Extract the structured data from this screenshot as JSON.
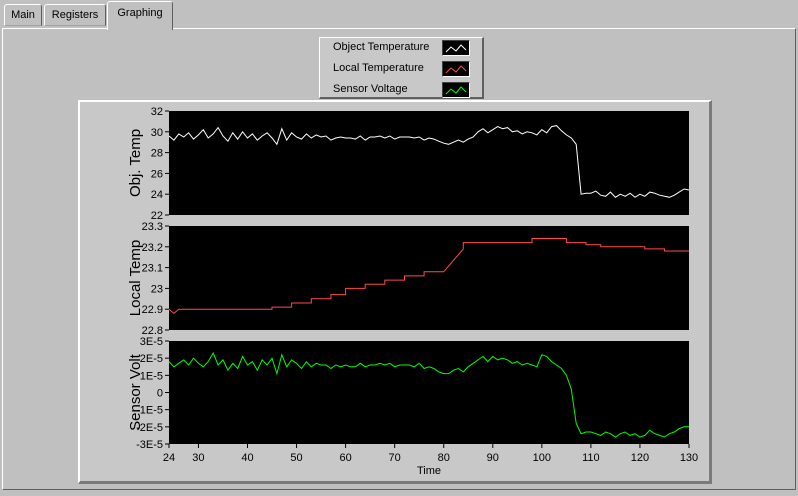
{
  "tabs": [
    {
      "label": "Main"
    },
    {
      "label": "Registers"
    },
    {
      "label": "Graphing",
      "active": true
    }
  ],
  "legend": [
    {
      "label": "Object Temperature",
      "color": "#ffffff"
    },
    {
      "label": "Local Temperature",
      "color": "#ff4a4a"
    },
    {
      "label": "Sensor Voltage",
      "color": "#00ff00"
    }
  ],
  "colors": {
    "background": "#c0c0c0",
    "plot_background": "#000000"
  },
  "chart_data": [
    {
      "type": "line",
      "ylabel": "Obj. Temp",
      "ylim": [
        22,
        32
      ],
      "yticks": [
        "32",
        "30",
        "28",
        "26",
        "24",
        "22"
      ],
      "ytick_values": [
        32,
        30,
        28,
        26,
        24,
        22
      ],
      "xlim": [
        24,
        130
      ],
      "series": [
        {
          "name": "Object Temperature",
          "color": "#ffffff",
          "x": [
            24,
            25,
            26,
            27,
            28,
            29,
            30,
            31,
            32,
            33,
            34,
            35,
            36,
            37,
            38,
            39,
            40,
            41,
            42,
            43,
            44,
            45,
            46,
            47,
            48,
            49,
            50,
            51,
            52,
            53,
            54,
            55,
            56,
            57,
            58,
            59,
            60,
            61,
            62,
            63,
            64,
            65,
            66,
            67,
            68,
            69,
            70,
            71,
            72,
            73,
            74,
            75,
            76,
            77,
            78,
            79,
            80,
            81,
            82,
            83,
            84,
            85,
            86,
            87,
            88,
            89,
            90,
            91,
            92,
            93,
            94,
            95,
            96,
            97,
            98,
            99,
            100,
            101,
            102,
            103,
            104,
            105,
            106,
            107,
            108,
            109,
            110,
            111,
            112,
            113,
            114,
            115,
            116,
            117,
            118,
            119,
            120,
            121,
            122,
            123,
            124,
            125,
            126,
            127,
            128,
            129,
            130
          ],
          "y": [
            29.6,
            29.2,
            29.8,
            29.5,
            29.9,
            29.3,
            29.7,
            30.2,
            29.4,
            29.8,
            30.4,
            29.6,
            29.1,
            29.9,
            29.3,
            30.0,
            29.4,
            29.8,
            29.2,
            29.6,
            29.9,
            29.4,
            28.8,
            30.3,
            29.2,
            29.9,
            29.5,
            29.3,
            29.8,
            29.4,
            29.7,
            29.5,
            29.6,
            29.2,
            29.4,
            29.5,
            29.4,
            29.4,
            29.3,
            29.6,
            29.2,
            29.5,
            29.5,
            29.6,
            29.4,
            29.6,
            29.3,
            29.5,
            29.5,
            29.5,
            29.4,
            29.5,
            29.2,
            29.4,
            29.3,
            29.1,
            28.9,
            28.8,
            29.0,
            29.2,
            29.0,
            29.3,
            29.5,
            30.0,
            30.3,
            29.9,
            30.2,
            30.5,
            30.3,
            30.4,
            30.0,
            30.1,
            29.8,
            30.0,
            29.9,
            29.7,
            30.2,
            29.9,
            30.5,
            30.6,
            30.1,
            29.7,
            29.4,
            28.8,
            24.0,
            24.1,
            24.1,
            24.3,
            23.9,
            23.8,
            24.2,
            23.7,
            24.0,
            23.8,
            24.1,
            23.7,
            24.0,
            23.8,
            24.2,
            24.1,
            23.9,
            23.8,
            23.7,
            23.9,
            24.2,
            24.5,
            24.4
          ]
        }
      ]
    },
    {
      "type": "line",
      "ylabel": "Local Temp",
      "ylim": [
        22.8,
        23.3
      ],
      "yticks": [
        "23.3",
        "23.2",
        "23.1",
        "23",
        "22.9",
        "22.8"
      ],
      "ytick_values": [
        23.3,
        23.2,
        23.1,
        23.0,
        22.9,
        22.8
      ],
      "xlim": [
        24,
        130
      ],
      "series": [
        {
          "name": "Local Temperature",
          "color": "#ff4a4a",
          "x": [
            24,
            25,
            26,
            45,
            45,
            49,
            49,
            53,
            53,
            57,
            57,
            60,
            60,
            64,
            64,
            68,
            68,
            72,
            72,
            76,
            76,
            80,
            84,
            84,
            98,
            98,
            105,
            105,
            109,
            109,
            112,
            112,
            121,
            121,
            125,
            125,
            130
          ],
          "y": [
            22.9,
            22.88,
            22.9,
            22.9,
            22.91,
            22.91,
            22.93,
            22.93,
            22.95,
            22.95,
            22.97,
            22.97,
            23.0,
            23.0,
            23.02,
            23.02,
            23.04,
            23.04,
            23.06,
            23.06,
            23.08,
            23.08,
            23.19,
            23.22,
            23.22,
            23.24,
            23.24,
            23.22,
            23.22,
            23.21,
            23.21,
            23.2,
            23.2,
            23.19,
            23.19,
            23.18,
            23.18
          ]
        }
      ]
    },
    {
      "type": "line",
      "ylabel": "Sensor Volt",
      "ylim": [
        -3e-05,
        3e-05
      ],
      "yticks": [
        "3E-5",
        "2E-5",
        "1E-5",
        "0",
        "-1E-5",
        "-2E-5",
        "-3E-5"
      ],
      "ytick_values": [
        3e-05,
        2e-05,
        1e-05,
        0,
        -1e-05,
        -2e-05,
        -3e-05
      ],
      "xlim": [
        24,
        130
      ],
      "xticks": [
        "24",
        "30",
        "40",
        "50",
        "60",
        "70",
        "80",
        "90",
        "100",
        "110",
        "120",
        "130"
      ],
      "xtick_values": [
        24,
        30,
        40,
        50,
        60,
        70,
        80,
        90,
        100,
        110,
        120,
        130
      ],
      "xlabel": "Time",
      "series": [
        {
          "name": "Sensor Voltage",
          "color": "#00ff00",
          "x": [
            24,
            25,
            26,
            27,
            28,
            29,
            30,
            31,
            32,
            33,
            34,
            35,
            36,
            37,
            38,
            39,
            40,
            41,
            42,
            43,
            44,
            45,
            46,
            47,
            48,
            49,
            50,
            51,
            52,
            53,
            54,
            55,
            56,
            57,
            58,
            59,
            60,
            61,
            62,
            63,
            64,
            65,
            66,
            67,
            68,
            69,
            70,
            71,
            72,
            73,
            74,
            75,
            76,
            77,
            78,
            79,
            80,
            81,
            82,
            83,
            84,
            85,
            86,
            87,
            88,
            89,
            90,
            91,
            92,
            93,
            94,
            95,
            96,
            97,
            98,
            99,
            100,
            101,
            102,
            103,
            104,
            105,
            106,
            107,
            108,
            109,
            110,
            111,
            112,
            113,
            114,
            115,
            116,
            117,
            118,
            119,
            120,
            121,
            122,
            123,
            124,
            125,
            126,
            127,
            128,
            129,
            130
          ],
          "y": [
            1.8e-05,
            1.5e-05,
            1.7e-05,
            1.9e-05,
            1.6e-05,
            2e-05,
            1.7e-05,
            1.5e-05,
            1.8e-05,
            2.3e-05,
            1.6e-05,
            1.9e-05,
            1.3e-05,
            1.7e-05,
            1.4e-05,
            2.1e-05,
            1.6e-05,
            1.8e-05,
            1.3e-05,
            1.9e-05,
            1.6e-05,
            2e-05,
            1.1e-05,
            2.2e-05,
            1.5e-05,
            1.9e-05,
            1.7e-05,
            1.4e-05,
            1.8e-05,
            1.5e-05,
            1.7e-05,
            1.6e-05,
            1.6e-05,
            1.4e-05,
            1.6e-05,
            1.5e-05,
            1.6e-05,
            1.5e-05,
            1.5e-05,
            1.7e-05,
            1.5e-05,
            1.6e-05,
            1.6e-05,
            1.7e-05,
            1.6e-05,
            1.7e-05,
            1.5e-05,
            1.6e-05,
            1.6e-05,
            1.6e-05,
            1.5e-05,
            1.7e-05,
            1.4e-05,
            1.5e-05,
            1.4e-05,
            1.2e-05,
            1.1e-05,
            1.1e-05,
            1.3e-05,
            1.4e-05,
            1.2e-05,
            1.5e-05,
            1.7e-05,
            1.9e-05,
            2.1e-05,
            1.8e-05,
            2.1e-05,
            1.9e-05,
            2e-05,
            1.9e-05,
            1.7e-05,
            1.8e-05,
            1.6e-05,
            1.7e-05,
            1.6e-05,
            1.5e-05,
            2.2e-05,
            2.1e-05,
            1.8e-05,
            1.6e-05,
            1.4e-05,
            1e-05,
            2e-06,
            -1.8e-05,
            -2.4e-05,
            -2.3e-05,
            -2.3e-05,
            -2.4e-05,
            -2.5e-05,
            -2.3e-05,
            -2.4e-05,
            -2.6e-05,
            -2.4e-05,
            -2.3e-05,
            -2.5e-05,
            -2.4e-05,
            -2.6e-05,
            -2.5e-05,
            -2.2e-05,
            -2.4e-05,
            -2.5e-05,
            -2.6e-05,
            -2.4e-05,
            -2.3e-05,
            -2.1e-05,
            -2e-05,
            -2e-05
          ]
        }
      ]
    }
  ]
}
